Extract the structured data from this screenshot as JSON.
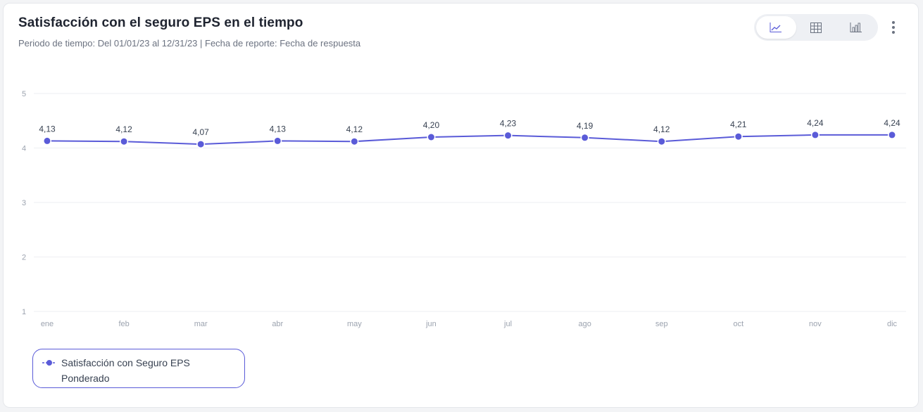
{
  "header": {
    "title": "Satisfacción con el seguro EPS en el tiempo",
    "subtitle": "Periodo de tiempo: Del 01/01/23 al 12/31/23 | Fecha de reporte: Fecha de respuesta"
  },
  "view_toggle": {
    "options": [
      "line-chart-icon",
      "table-icon",
      "bar-chart-icon"
    ],
    "active": "line-chart-icon"
  },
  "legend": {
    "label": "Satisfacción con Seguro EPS Ponderado"
  },
  "colors": {
    "series": "#5a5bd8",
    "grid": "#eeeff2"
  },
  "chart_data": {
    "type": "line",
    "categories": [
      "ene",
      "feb",
      "mar",
      "abr",
      "may",
      "jun",
      "jul",
      "ago",
      "sep",
      "oct",
      "nov",
      "dic"
    ],
    "series": [
      {
        "name": "Satisfacción con Seguro EPS Ponderado",
        "values": [
          4.13,
          4.12,
          4.07,
          4.13,
          4.12,
          4.2,
          4.23,
          4.19,
          4.12,
          4.21,
          4.24,
          4.24
        ],
        "labels": [
          "4,13",
          "4,12",
          "4,07",
          "4,13",
          "4,12",
          "4,20",
          "4,23",
          "4,19",
          "4,12",
          "4,21",
          "4,24",
          "4,24"
        ]
      }
    ],
    "ylim": [
      1,
      5
    ],
    "yticks": [
      "1",
      "2",
      "3",
      "4",
      "5"
    ],
    "grid": true,
    "legend_position": "bottom-left"
  }
}
